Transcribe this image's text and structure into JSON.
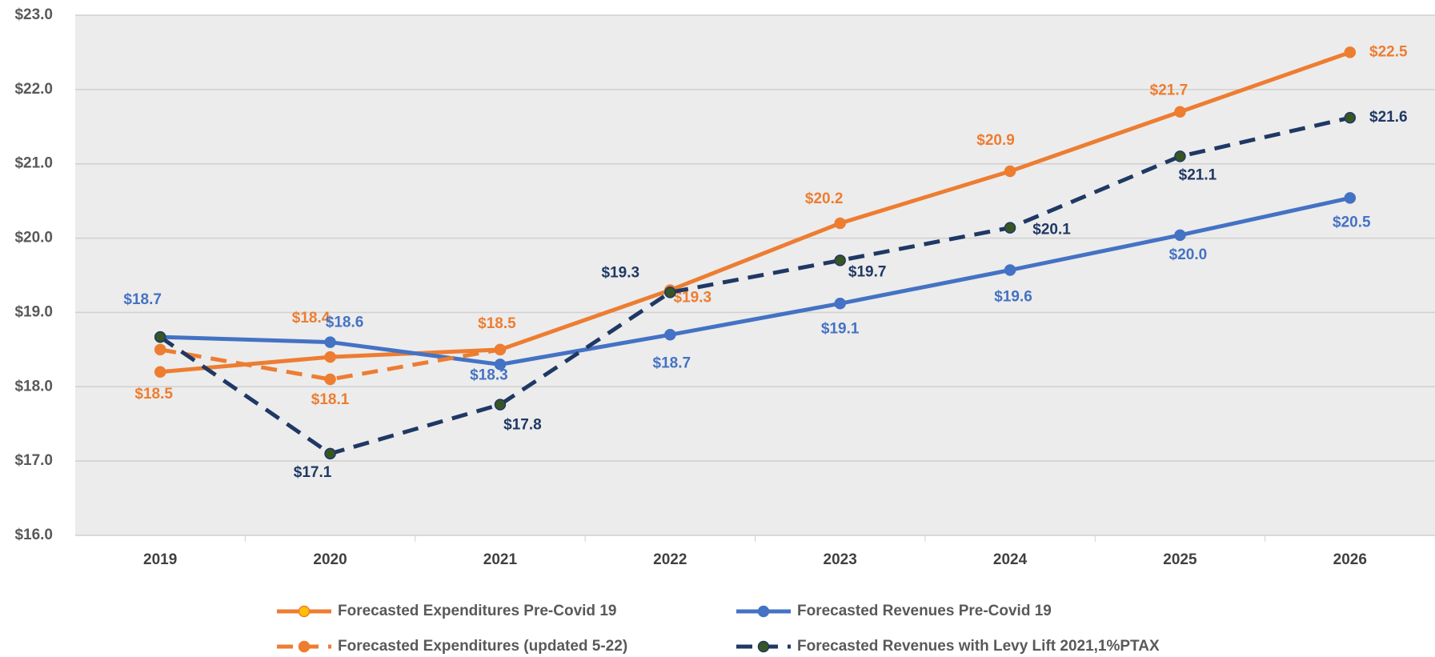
{
  "chart_data": {
    "type": "line",
    "categories": [
      "2019",
      "2020",
      "2021",
      "2022",
      "2023",
      "2024",
      "2025",
      "2026"
    ],
    "series": [
      {
        "name": "Forecasted Expenditures Pre-Covid 19",
        "color": "#ed7d31",
        "marker": "#ed7d31",
        "dash": false,
        "values": [
          18.2,
          18.4,
          18.5,
          19.3,
          20.2,
          20.9,
          21.7,
          22.5
        ],
        "value_labels": [
          null,
          "$18.4",
          "$18.5",
          "$19.3",
          "$20.2",
          "$20.9",
          "$21.7",
          "$22.5"
        ]
      },
      {
        "name": "Forecasted Revenues Pre-Covid 19",
        "color": "#4472c4",
        "marker": "#4472c4",
        "dash": false,
        "values": [
          18.67,
          18.6,
          18.3,
          18.7,
          19.12,
          19.57,
          20.04,
          20.54
        ],
        "value_labels": [
          "$18.7",
          "$18.6",
          "$18.3",
          "$18.7",
          "$19.1",
          "$19.6",
          "$20.0",
          "$20.5"
        ]
      },
      {
        "name": "Forecasted Expenditures (updated 5-22)",
        "color": "#ed7d31",
        "marker": "#ed7d31",
        "dash": true,
        "values": [
          18.5,
          18.1,
          18.5,
          null,
          null,
          null,
          null,
          null
        ],
        "value_labels": [
          "$18.5",
          "$18.1",
          null,
          null,
          null,
          null,
          null,
          null
        ]
      },
      {
        "name": "Forecasted Revenues with Levy Lift 2021,1%PTAX",
        "color": "#1f3864",
        "marker": "#375623",
        "dash": true,
        "values": [
          18.67,
          17.1,
          17.76,
          19.27,
          19.7,
          20.14,
          21.1,
          21.62
        ],
        "value_labels": [
          null,
          "$17.1",
          "$17.8",
          "$19.3",
          "$19.7",
          "$20.1",
          "$21.1",
          "$21.6"
        ]
      }
    ],
    "ylim": [
      16,
      23
    ],
    "yticks": [
      {
        "value": 16,
        "label": "$16.0"
      },
      {
        "value": 17,
        "label": "$17.0"
      },
      {
        "value": 18,
        "label": "$18.0"
      },
      {
        "value": 19,
        "label": "$19.0"
      },
      {
        "value": 20,
        "label": "$20.0"
      },
      {
        "value": 21,
        "label": "$21.0"
      },
      {
        "value": 22,
        "label": "$22.0"
      },
      {
        "value": 23,
        "label": "$23.0"
      }
    ],
    "grid": true
  }
}
